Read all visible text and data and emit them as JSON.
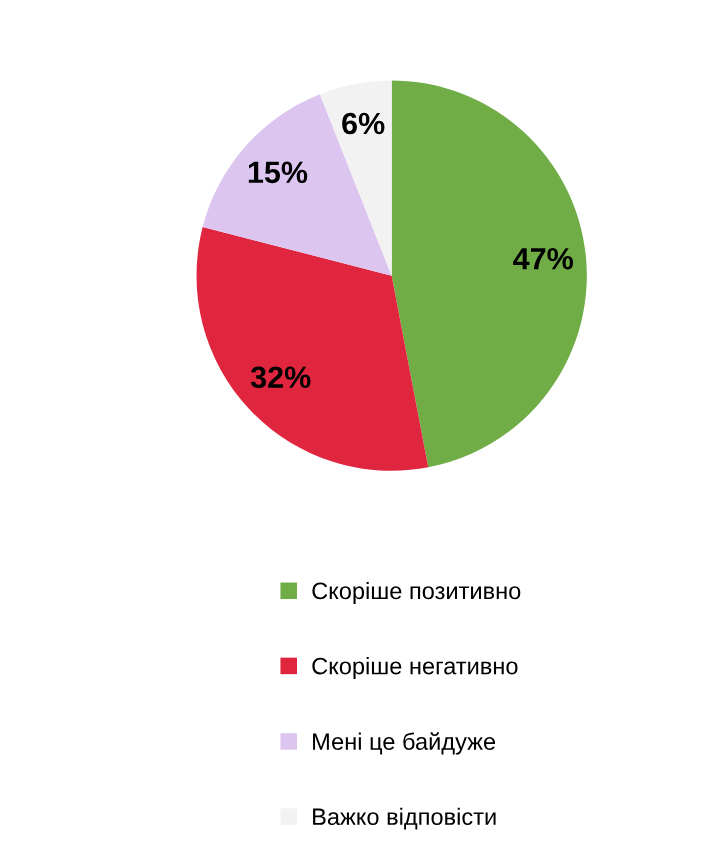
{
  "chart_data": {
    "type": "pie",
    "categories": [
      "Скоріше позитивно",
      "Скоріше негативно",
      "Мені це байдуже",
      "Важко відповісти"
    ],
    "values": [
      47,
      32,
      15,
      6
    ],
    "colors": [
      "#70ad47",
      "#e0253f",
      "#dcc6ef",
      "#f2f2f2"
    ],
    "value_labels": [
      "47%",
      "32%",
      "15%",
      "6%"
    ],
    "legend": "bottom"
  }
}
